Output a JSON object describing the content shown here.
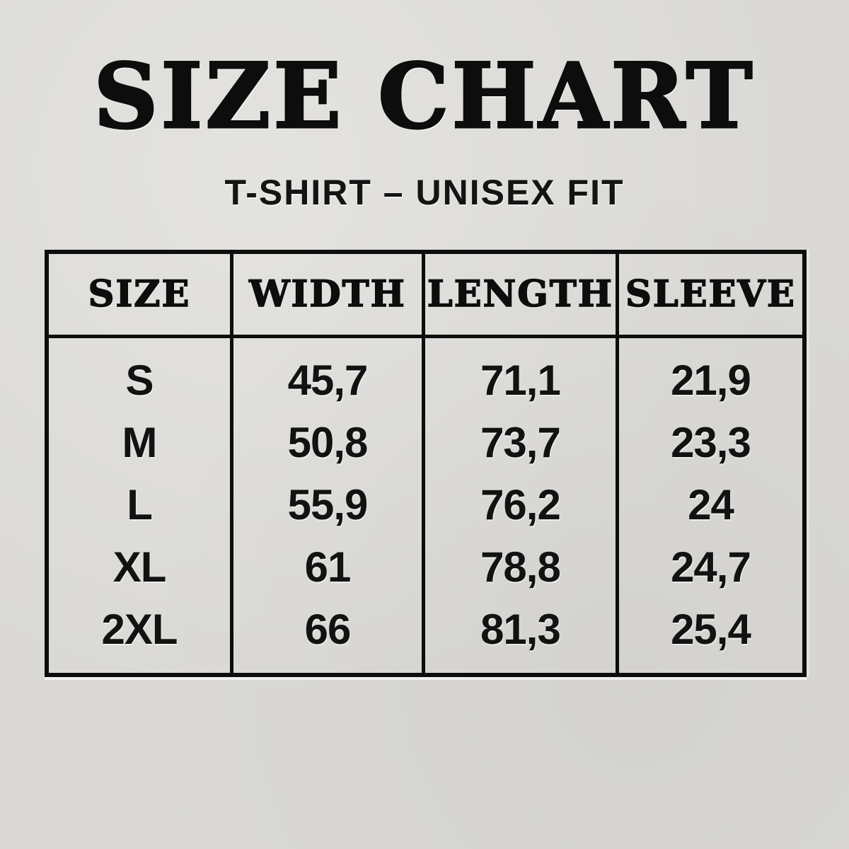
{
  "page": {
    "background_color": "#dad9d5",
    "text_color": "#0d0d0d"
  },
  "title": "SIZE CHART",
  "subtitle": "T-SHIRT – UNISEX FIT",
  "table": {
    "headers": [
      "SIZE",
      "WIDTH",
      "LENGTH",
      "SLEEVE"
    ],
    "rows": [
      {
        "size": "S",
        "width": "45,7",
        "length": "71,1",
        "sleeve": "21,9"
      },
      {
        "size": "M",
        "width": "50,8",
        "length": "73,7",
        "sleeve": "23,3"
      },
      {
        "size": "L",
        "width": "55,9",
        "length": "76,2",
        "sleeve": "24"
      },
      {
        "size": "XL",
        "width": "61",
        "length": "78,8",
        "sleeve": "24,7"
      },
      {
        "size": "2XL",
        "width": "66",
        "length": "81,3",
        "sleeve": "25,4"
      }
    ]
  }
}
